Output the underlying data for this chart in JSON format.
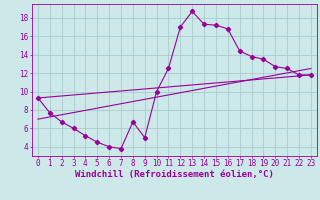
{
  "xlabel": "Windchill (Refroidissement éolien,°C)",
  "bg_color": "#cce8e8",
  "grid_color": "#aacccc",
  "line_color": "#990099",
  "xlim": [
    -0.5,
    23.5
  ],
  "ylim": [
    3.0,
    19.5
  ],
  "x_ticks": [
    0,
    1,
    2,
    3,
    4,
    5,
    6,
    7,
    8,
    9,
    10,
    11,
    12,
    13,
    14,
    15,
    16,
    17,
    18,
    19,
    20,
    21,
    22,
    23
  ],
  "y_ticks": [
    4,
    6,
    8,
    10,
    12,
    14,
    16,
    18
  ],
  "curve1_x": [
    0,
    1,
    2,
    3,
    4,
    5,
    6,
    7,
    8,
    9,
    10,
    11,
    12,
    13,
    14,
    15,
    16,
    17,
    18,
    19,
    20,
    21,
    22,
    23
  ],
  "curve1_y": [
    9.3,
    7.7,
    6.7,
    6.0,
    5.2,
    4.5,
    4.0,
    3.8,
    6.7,
    5.0,
    10.0,
    12.5,
    17.0,
    18.7,
    17.3,
    17.2,
    16.8,
    14.4,
    13.8,
    13.5,
    12.7,
    12.5,
    11.8,
    11.8
  ],
  "curve2_x": [
    0,
    23
  ],
  "curve2_y": [
    9.3,
    11.8
  ],
  "curve3_x": [
    0,
    23
  ],
  "curve3_y": [
    7.0,
    12.5
  ],
  "xlabel_fontsize": 6.5,
  "tick_fontsize": 5.5,
  "lw": 0.8,
  "marker_size": 2.2
}
